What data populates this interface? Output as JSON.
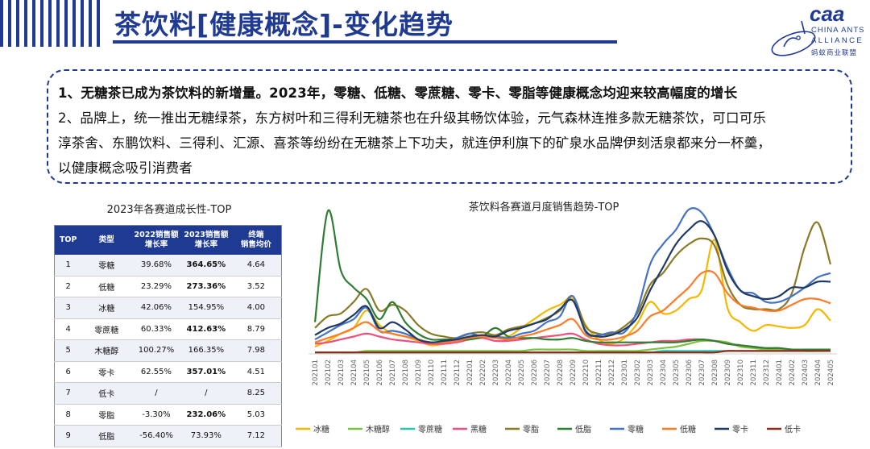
{
  "header": {
    "title": "茶饮料[健康概念]-变化趋势",
    "logo": {
      "mark": "caa",
      "line1": "CHINA ANTS",
      "line2": "ALLIANCE",
      "line3": "蚂蚁商业联盟"
    }
  },
  "summary": {
    "lines": [
      "1、无糖茶已成为茶饮料的新增量。2023年，零糖、低糖、零蔗糖、零卡、零脂等健康概念均迎来较高幅度的增长",
      "2、品牌上，统一推出无糖绿茶，东方树叶和三得利无糖茶也在升级其畅饮体验，元气森林连推多款无糖茶饮，可口可乐",
      "淳茶舍、东鹏饮料、三得利、汇源、喜茶等纷纷在无糖茶上下功夫，就连伊利旗下的矿泉水品牌伊刻活泉都来分一杯羹，",
      "以健康概念吸引消费者"
    ]
  },
  "table": {
    "title": "2023年各赛道成长性-TOP",
    "headers": [
      "TOP",
      "类型",
      "2022销售额\n增长率",
      "2023销售额\n增长率",
      "终端\n销售均价"
    ],
    "rows": [
      [
        "1",
        "零糖",
        "39.68%",
        "364.65%",
        "4.64"
      ],
      [
        "2",
        "低糖",
        "23.29%",
        "273.36%",
        "3.52"
      ],
      [
        "3",
        "冰糖",
        "42.06%",
        "154.95%",
        "4.00"
      ],
      [
        "4",
        "零蔗糖",
        "60.33%",
        "412.63%",
        "8.79"
      ],
      [
        "5",
        "木糖醇",
        "100.27%",
        "166.35%",
        "7.98"
      ],
      [
        "6",
        "零卡",
        "62.55%",
        "357.01%",
        "4.51"
      ],
      [
        "7",
        "低卡",
        "/",
        "/",
        "8.25"
      ],
      [
        "8",
        "零脂",
        "-3.30%",
        "232.06%",
        "5.03"
      ],
      [
        "9",
        "低脂",
        "-56.40%",
        "73.93%",
        "7.12"
      ]
    ],
    "highlight_col": 3,
    "highlight_rows": [
      0,
      1,
      3,
      5,
      7
    ]
  },
  "chart_data": {
    "type": "line",
    "title": "茶饮料各赛道月度销售趋势-TOP",
    "x": [
      "202101",
      "202102",
      "202103",
      "202104",
      "202105",
      "202106",
      "202107",
      "202108",
      "202109",
      "202110",
      "202111",
      "202112",
      "202201",
      "202202",
      "202203",
      "202204",
      "202205",
      "202206",
      "202207",
      "202208",
      "202209",
      "202210",
      "202211",
      "202212",
      "202301",
      "202302",
      "202303",
      "202304",
      "202305",
      "202306",
      "202307",
      "202308",
      "202309",
      "202310",
      "202311",
      "202312",
      "202401",
      "202402",
      "202403",
      "202404",
      "202405"
    ],
    "ylim": [
      0,
      100
    ],
    "grid": false,
    "legend": "bottom",
    "series": [
      {
        "name": "冰糖",
        "color": "#f5b800",
        "values": [
          5,
          9,
          14,
          18,
          30,
          20,
          14,
          12,
          9,
          6,
          7,
          9,
          11,
          13,
          12,
          12,
          18,
          24,
          30,
          34,
          38,
          20,
          10,
          7,
          11,
          21,
          36,
          28,
          30,
          38,
          44,
          79,
          32,
          22,
          16,
          20,
          19,
          18,
          20,
          31,
          23
        ]
      },
      {
        "name": "木糖醇",
        "color": "#7cc242",
        "values": [
          1,
          1,
          1,
          1,
          2,
          2,
          2,
          2,
          2,
          2,
          2,
          2,
          2,
          2,
          2,
          2,
          2,
          3,
          3,
          3,
          3,
          2,
          2,
          2,
          2,
          2,
          3,
          4,
          5,
          7,
          9,
          9,
          8,
          5,
          4,
          3,
          3,
          3,
          2,
          2,
          2
        ]
      },
      {
        "name": "零蔗糖",
        "color": "#2bc4b4",
        "values": [
          1,
          1,
          1,
          1,
          1,
          1,
          1,
          1,
          1,
          1,
          1,
          1,
          1,
          1,
          1,
          1,
          1,
          1,
          1,
          1,
          1,
          1,
          1,
          1,
          1,
          1,
          1,
          2,
          2,
          2,
          2,
          2,
          2,
          2,
          2,
          2,
          2,
          2,
          2,
          2,
          2
        ]
      },
      {
        "name": "黑糖",
        "color": "#ef4f7b",
        "values": [
          7,
          8,
          10,
          12,
          14,
          12,
          10,
          9,
          8,
          7,
          7,
          8,
          10,
          11,
          9,
          9,
          10,
          11,
          12,
          13,
          14,
          10,
          7,
          6,
          6,
          7,
          8,
          9,
          9,
          10,
          10,
          9,
          7,
          6,
          5,
          4,
          4,
          3,
          3,
          3,
          3
        ]
      },
      {
        "name": "零脂",
        "color": "#8a7a28",
        "values": [
          18,
          26,
          28,
          36,
          45,
          30,
          34,
          30,
          20,
          14,
          12,
          11,
          14,
          15,
          13,
          17,
          19,
          21,
          25,
          30,
          40,
          19,
          14,
          14,
          19,
          28,
          48,
          56,
          68,
          76,
          80,
          75,
          48,
          34,
          31,
          31,
          31,
          42,
          74,
          91,
          62
        ]
      },
      {
        "name": "低脂",
        "color": "#2e7d32",
        "values": [
          22,
          99,
          58,
          46,
          38,
          24,
          36,
          22,
          14,
          10,
          10,
          10,
          10,
          12,
          18,
          12,
          11,
          11,
          10,
          10,
          11,
          9,
          8,
          8,
          8,
          8,
          8,
          8,
          8,
          9,
          10,
          9,
          7,
          6,
          5,
          4,
          4,
          3,
          3,
          3,
          3
        ]
      },
      {
        "name": "零糖",
        "color": "#4472c4",
        "values": [
          10,
          15,
          20,
          24,
          32,
          16,
          16,
          14,
          10,
          8,
          8,
          11,
          14,
          12,
          12,
          11,
          14,
          16,
          22,
          26,
          40,
          15,
          13,
          15,
          15,
          30,
          62,
          76,
          86,
          100,
          98,
          82,
          60,
          44,
          42,
          36,
          36,
          40,
          46,
          53,
          56
        ]
      },
      {
        "name": "低糖",
        "color": "#ff7b29",
        "values": [
          8,
          11,
          14,
          18,
          22,
          16,
          14,
          12,
          10,
          8,
          8,
          9,
          11,
          12,
          11,
          10,
          12,
          14,
          17,
          20,
          24,
          13,
          10,
          10,
          12,
          16,
          26,
          30,
          38,
          46,
          56,
          56,
          42,
          34,
          32,
          30,
          30,
          34,
          38,
          38,
          35
        ]
      },
      {
        "name": "零卡",
        "color": "#1f3a64",
        "values": [
          13,
          18,
          21,
          27,
          33,
          18,
          22,
          17,
          10,
          8,
          9,
          10,
          12,
          13,
          12,
          16,
          18,
          21,
          24,
          31,
          37,
          16,
          12,
          13,
          17,
          25,
          44,
          60,
          76,
          86,
          92,
          82,
          58,
          44,
          40,
          38,
          40,
          46,
          46,
          50,
          50
        ]
      },
      {
        "name": "低卡",
        "color": "#8b2c18",
        "values": [
          1,
          1,
          1,
          1,
          1,
          1,
          1,
          1,
          1,
          1,
          1,
          1,
          1,
          1,
          1,
          1,
          1,
          1,
          1,
          1,
          1,
          1,
          1,
          1,
          1,
          1,
          1,
          1,
          1,
          1,
          1,
          1,
          2,
          2,
          2,
          2,
          2,
          2,
          2,
          2,
          2
        ]
      }
    ]
  }
}
